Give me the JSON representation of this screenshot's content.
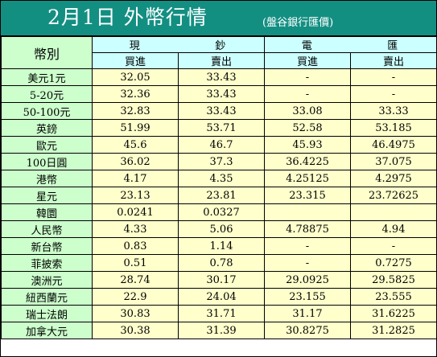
{
  "title": {
    "main": "2月1日 外幣行情",
    "source": "(盤谷銀行匯價)"
  },
  "table": {
    "corner_label": "幣別",
    "cash_group": [
      "現",
      "鈔"
    ],
    "wire_group": [
      "電",
      "匯"
    ],
    "buy_label": "買進",
    "sell_label": "賣出",
    "rows": [
      {
        "currency": "美元1元",
        "cash_buy": "32.05",
        "cash_sell": "33.43",
        "wire_buy": "-",
        "wire_sell": "-"
      },
      {
        "currency": "5-20元",
        "cash_buy": "32.36",
        "cash_sell": "33.43",
        "wire_buy": "-",
        "wire_sell": "-"
      },
      {
        "currency": "50-100元",
        "cash_buy": "32.83",
        "cash_sell": "33.43",
        "wire_buy": "33.08",
        "wire_sell": "33.33"
      },
      {
        "currency": "英鎊",
        "cash_buy": "51.99",
        "cash_sell": "53.71",
        "wire_buy": "52.58",
        "wire_sell": "53.185"
      },
      {
        "currency": "歐元",
        "cash_buy": "45.6",
        "cash_sell": "46.7",
        "wire_buy": "45.93",
        "wire_sell": "46.4975"
      },
      {
        "currency": "100日圓",
        "cash_buy": "36.02",
        "cash_sell": "37.3",
        "wire_buy": "36.4225",
        "wire_sell": "37.075"
      },
      {
        "currency": "港幣",
        "cash_buy": "4.17",
        "cash_sell": "4.35",
        "wire_buy": "4.25125",
        "wire_sell": "4.2975"
      },
      {
        "currency": "星元",
        "cash_buy": "23.13",
        "cash_sell": "23.81",
        "wire_buy": "23.315",
        "wire_sell": "23.72625"
      },
      {
        "currency": "韓圜",
        "cash_buy": "0.0241",
        "cash_sell": "0.0327",
        "wire_buy": "",
        "wire_sell": ""
      },
      {
        "currency": "人民幣",
        "cash_buy": "4.33",
        "cash_sell": "5.06",
        "wire_buy": "4.78875",
        "wire_sell": "4.94"
      },
      {
        "currency": "新台幣",
        "cash_buy": "0.83",
        "cash_sell": "1.14",
        "wire_buy": "-",
        "wire_sell": "-"
      },
      {
        "currency": "菲披索",
        "cash_buy": "0.51",
        "cash_sell": "0.78",
        "wire_buy": "-",
        "wire_sell": "0.7275"
      },
      {
        "currency": "澳洲元",
        "cash_buy": "28.74",
        "cash_sell": "30.17",
        "wire_buy": "29.0925",
        "wire_sell": "29.5825"
      },
      {
        "currency": "紐西蘭元",
        "cash_buy": "22.9",
        "cash_sell": "24.04",
        "wire_buy": "23.155",
        "wire_sell": "23.555"
      },
      {
        "currency": "瑞士法朗",
        "cash_buy": "30.83",
        "cash_sell": "31.71",
        "wire_buy": "31.17",
        "wire_sell": "31.6225"
      },
      {
        "currency": "加拿大元",
        "cash_buy": "30.38",
        "cash_sell": "31.39",
        "wire_buy": "30.8275",
        "wire_sell": "31.2825"
      }
    ]
  },
  "colors": {
    "title_bg": "#138f82",
    "title_text": "#ffffff",
    "name_bg": "#ccffcc",
    "header_bg": "#ccffff",
    "value_bg": "#ffffcc",
    "border": "#000000"
  }
}
